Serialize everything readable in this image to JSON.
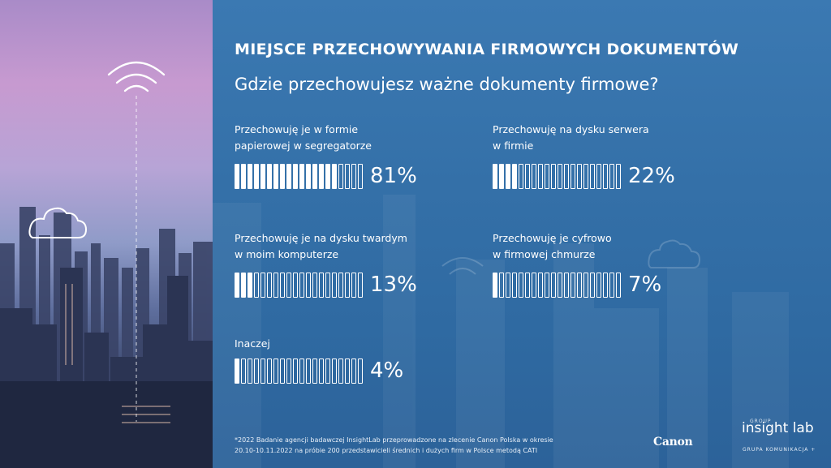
{
  "heading": "MIEJSCE PRZECHOWYWANIA FIRMOWYCH DOKUMENTÓW",
  "question": "Gdzie przechowujesz ważne dokumenty firmowe?",
  "chart_data": {
    "type": "bar",
    "title": "MIEJSCE PRZECHOWYWANIA FIRMOWYCH DOKUMENTÓW",
    "subtitle": "Gdzie przechowujesz ważne dokumenty firmowe?",
    "categories": [
      "Przechowuję je w formie papierowej w segregatorze",
      "Przechowuję na dysku serwera w firmie",
      "Przechowuję je na dysku twardym w moim komputerze",
      "Przechowuję je cyfrowo w firmowej chmurze",
      "Inaczej"
    ],
    "values": [
      81,
      22,
      13,
      7,
      4
    ],
    "unit": "%",
    "ylim": [
      0,
      100
    ]
  },
  "items": [
    {
      "label": "Przechowuję je w formie\npapierowej w segregatorze",
      "percent": 81,
      "percent_text": "81%"
    },
    {
      "label": "Przechowuję na dysku serwera\nw firmie",
      "percent": 22,
      "percent_text": "22%"
    },
    {
      "label": "Przechowuję je na dysku twardym\nw moim komputerze",
      "percent": 13,
      "percent_text": "13%"
    },
    {
      "label": "Przechowuję je cyfrowo\nw firmowej chmurze",
      "percent": 7,
      "percent_text": "7%"
    },
    {
      "label": "Inaczej",
      "percent": 4,
      "percent_text": "4%"
    }
  ],
  "footnote": "*2022 Badanie agencji badawczej InsightLab przeprowadzone na zlecenie Canon Polska w okresie\n20.10-10.11.2022 na próbie 200 przedstawicieli średnich i dużych firm w Polsce metodą CATI",
  "logos": {
    "canon": "Canon",
    "insight_small": "GROUP",
    "insight": "insight lab",
    "grupa": "GRUPA KOMUNIKACJA +"
  },
  "colors": {
    "panel": "#3470a8",
    "bar": "#ffffff"
  }
}
